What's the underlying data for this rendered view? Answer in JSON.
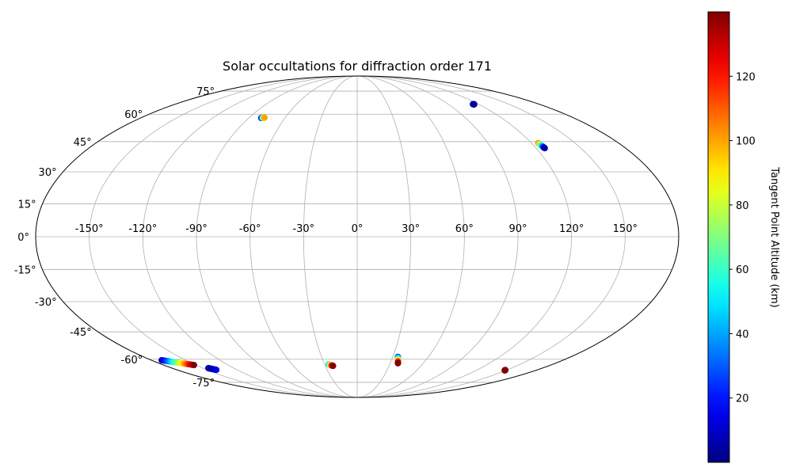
{
  "chart_data": {
    "type": "scatter",
    "projection": "mollweide",
    "title": "Solar occultations for diffraction order 171",
    "x_tick_labels": [
      "-150°",
      "-120°",
      "-90°",
      "-60°",
      "-30°",
      "0°",
      "30°",
      "60°",
      "90°",
      "120°",
      "150°"
    ],
    "x_ticks": [
      -150,
      -120,
      -90,
      -60,
      -30,
      0,
      30,
      60,
      90,
      120,
      150
    ],
    "y_tick_labels": [
      "-75°",
      "-60°",
      "-45°",
      "-30°",
      "-15°",
      "0°",
      "15°",
      "30°",
      "45°",
      "60°",
      "75°"
    ],
    "y_ticks": [
      -75,
      -60,
      -45,
      -30,
      -15,
      0,
      15,
      30,
      45,
      60,
      75
    ],
    "grid": true,
    "colormap": "jet",
    "color_range": [
      0,
      140
    ],
    "colorbar": {
      "label": "Tangent Point Altitude (km)",
      "ticks": [
        20,
        40,
        60,
        80,
        100,
        120
      ],
      "tick_labels": [
        "20",
        "40",
        "60",
        "80",
        "100",
        "120"
      ],
      "placement": "right"
    },
    "occultations": [
      {
        "lon_start": -79.7,
        "lat_start": 57.8,
        "lon_end": -77.2,
        "lat_end": 58.0,
        "alt_start": 5,
        "alt_end": 100
      },
      {
        "lon_start": 114.5,
        "lat_start": 66.1,
        "lon_end": 115.5,
        "lat_end": 66.0,
        "alt_start": 30,
        "alt_end": 2
      },
      {
        "lon_start": 124.8,
        "lat_start": 44.2,
        "lon_end": 125.8,
        "lat_end": 41.6,
        "alt_start": 110,
        "alt_end": 5
      },
      {
        "lon_start": -171.2,
        "lat_start": -60.6,
        "lon_end": -151.8,
        "lat_end": -63.5,
        "alt_start": 5,
        "alt_end": 140
      },
      {
        "lon_start": -140.8,
        "lat_start": -66.5,
        "lon_end": -144.8,
        "lat_end": -65.4,
        "alt_start": 20,
        "alt_end": 5
      },
      {
        "lon_start": -26.3,
        "lat_start": -63.1,
        "lon_end": -22.7,
        "lat_end": -64.0,
        "alt_start": 40,
        "alt_end": 140
      },
      {
        "lon_start": 34.3,
        "lat_start": -58.6,
        "lon_end": 37.0,
        "lat_end": -62.4,
        "alt_start": 20,
        "alt_end": 140
      },
      {
        "lon_start": 148.5,
        "lat_start": -66.6,
        "lon_end": 148.7,
        "lat_end": -66.8,
        "alt_start": 140,
        "alt_end": 140
      }
    ]
  }
}
